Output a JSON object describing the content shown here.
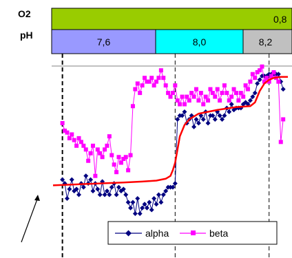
{
  "header": {
    "row1_label": "O2",
    "row2_label": "pH",
    "o2_value": "0,8",
    "o2_color": "#99cc00",
    "ph_segments": [
      {
        "label": "7,6",
        "color": "#9999ff"
      },
      {
        "label": "8,0",
        "color": "#00ffff"
      },
      {
        "label": "8,2",
        "color": "#c0c0c0"
      }
    ]
  },
  "chart_data": {
    "type": "line",
    "x_range": [
      0,
      100
    ],
    "y_range": [
      0,
      100
    ],
    "grid": false,
    "legend_position": "bottom-right",
    "phase_boundaries": [
      4,
      52,
      92
    ],
    "series": [
      {
        "name": "alpha",
        "color": "#000080",
        "marker": "diamond",
        "points": [
          [
            4,
            39
          ],
          [
            5,
            37
          ],
          [
            6,
            29
          ],
          [
            7,
            34
          ],
          [
            8,
            39
          ],
          [
            9,
            33
          ],
          [
            10,
            34
          ],
          [
            11,
            31
          ],
          [
            12,
            37
          ],
          [
            13,
            35
          ],
          [
            14,
            41
          ],
          [
            15,
            37
          ],
          [
            16,
            39
          ],
          [
            17,
            33
          ],
          [
            18,
            37
          ],
          [
            19,
            34
          ],
          [
            20,
            31
          ],
          [
            21,
            38
          ],
          [
            22,
            31
          ],
          [
            23,
            33
          ],
          [
            24,
            31
          ],
          [
            25,
            35
          ],
          [
            26,
            37
          ],
          [
            27,
            31
          ],
          [
            28,
            35
          ],
          [
            29,
            33
          ],
          [
            30,
            34
          ],
          [
            31,
            31
          ],
          [
            32,
            27
          ],
          [
            33,
            24
          ],
          [
            34,
            27
          ],
          [
            35,
            21
          ],
          [
            36,
            29
          ],
          [
            37,
            21
          ],
          [
            38,
            24
          ],
          [
            39,
            26
          ],
          [
            40,
            24
          ],
          [
            41,
            27
          ],
          [
            42,
            23
          ],
          [
            43,
            29
          ],
          [
            44,
            26
          ],
          [
            45,
            31
          ],
          [
            46,
            27
          ],
          [
            47,
            31
          ],
          [
            48,
            33
          ],
          [
            49,
            35
          ],
          [
            50,
            35
          ],
          [
            51,
            35
          ],
          [
            52,
            37
          ],
          [
            53,
            71
          ],
          [
            54,
            73
          ],
          [
            55,
            73
          ],
          [
            56,
            75
          ],
          [
            57,
            69
          ],
          [
            58,
            71
          ],
          [
            59,
            73
          ],
          [
            60,
            67
          ],
          [
            61,
            71
          ],
          [
            62,
            69
          ],
          [
            63,
            73
          ],
          [
            64,
            71
          ],
          [
            65,
            75
          ],
          [
            66,
            69
          ],
          [
            67,
            73
          ],
          [
            68,
            73
          ],
          [
            69,
            71
          ],
          [
            70,
            75
          ],
          [
            71,
            73
          ],
          [
            72,
            71
          ],
          [
            73,
            73
          ],
          [
            74,
            77
          ],
          [
            75,
            75
          ],
          [
            76,
            79
          ],
          [
            77,
            76
          ],
          [
            78,
            77
          ],
          [
            79,
            77
          ],
          [
            80,
            77
          ],
          [
            81,
            79
          ],
          [
            82,
            80
          ],
          [
            83,
            79
          ],
          [
            84,
            81
          ],
          [
            85,
            83
          ],
          [
            86,
            85
          ],
          [
            87,
            90
          ],
          [
            88,
            92
          ],
          [
            89,
            94
          ],
          [
            90,
            94
          ],
          [
            91,
            94
          ],
          [
            92,
            95
          ],
          [
            93,
            95
          ],
          [
            94,
            95
          ],
          [
            95,
            95
          ],
          [
            96,
            95
          ],
          [
            97,
            91
          ],
          [
            98,
            87
          ]
        ]
      },
      {
        "name": "beta",
        "color": "#ff00ff",
        "marker": "square",
        "points": [
          [
            4,
            69
          ],
          [
            5,
            65
          ],
          [
            6,
            64
          ],
          [
            7,
            61
          ],
          [
            8,
            63
          ],
          [
            9,
            60
          ],
          [
            10,
            57
          ],
          [
            11,
            61
          ],
          [
            12,
            59
          ],
          [
            13,
            57
          ],
          [
            14,
            55
          ],
          [
            15,
            49
          ],
          [
            16,
            53
          ],
          [
            17,
            57
          ],
          [
            18,
            41
          ],
          [
            19,
            55
          ],
          [
            20,
            53
          ],
          [
            21,
            51
          ],
          [
            22,
            55
          ],
          [
            23,
            57
          ],
          [
            24,
            62
          ],
          [
            25,
            52
          ],
          [
            26,
            47
          ],
          [
            27,
            43
          ],
          [
            28,
            51
          ],
          [
            29,
            48
          ],
          [
            30,
            50
          ],
          [
            31,
            51
          ],
          [
            32,
            44
          ],
          [
            33,
            52
          ],
          [
            34,
            78
          ],
          [
            35,
            87
          ],
          [
            36,
            90
          ],
          [
            37,
            85
          ],
          [
            38,
            89
          ],
          [
            39,
            93
          ],
          [
            40,
            91
          ],
          [
            41,
            91
          ],
          [
            42,
            93
          ],
          [
            43,
            89
          ],
          [
            44,
            91
          ],
          [
            45,
            93
          ],
          [
            46,
            97
          ],
          [
            47,
            93
          ],
          [
            48,
            89
          ],
          [
            49,
            85
          ],
          [
            50,
            83
          ],
          [
            51,
            85
          ],
          [
            52,
            89
          ],
          [
            53,
            81
          ],
          [
            54,
            79
          ],
          [
            55,
            83
          ],
          [
            56,
            79
          ],
          [
            57,
            83
          ],
          [
            58,
            81
          ],
          [
            59,
            85
          ],
          [
            60,
            83
          ],
          [
            61,
            87
          ],
          [
            62,
            81
          ],
          [
            63,
            85
          ],
          [
            64,
            79
          ],
          [
            65,
            83
          ],
          [
            66,
            81
          ],
          [
            67,
            87
          ],
          [
            68,
            85
          ],
          [
            69,
            83
          ],
          [
            70,
            87
          ],
          [
            71,
            81
          ],
          [
            72,
            85
          ],
          [
            73,
            89
          ],
          [
            74,
            85
          ],
          [
            75,
            81
          ],
          [
            76,
            83
          ],
          [
            77,
            87
          ],
          [
            78,
            85
          ],
          [
            79,
            81
          ],
          [
            80,
            85
          ],
          [
            81,
            83
          ],
          [
            82,
            89
          ],
          [
            83,
            87
          ],
          [
            84,
            91
          ],
          [
            85,
            95
          ],
          [
            86,
            93
          ],
          [
            87,
            96
          ],
          [
            88,
            97
          ],
          [
            89,
            99
          ],
          [
            90,
            91
          ],
          [
            91,
            93
          ],
          [
            92,
            91
          ],
          [
            93,
            94
          ],
          [
            94,
            96
          ],
          [
            95,
            93
          ],
          [
            96,
            91
          ],
          [
            97,
            59
          ],
          [
            98,
            71
          ]
        ]
      },
      {
        "name": "",
        "color": "#ff0000",
        "marker": "none",
        "points": [
          [
            0,
            36
          ],
          [
            10,
            36.5
          ],
          [
            20,
            37
          ],
          [
            30,
            37.5
          ],
          [
            38,
            38
          ],
          [
            44,
            38.5
          ],
          [
            48,
            39.5
          ],
          [
            50,
            41
          ],
          [
            51,
            44
          ],
          [
            52,
            48
          ],
          [
            53,
            55
          ],
          [
            54,
            62
          ],
          [
            56,
            68
          ],
          [
            58,
            71
          ],
          [
            62,
            74
          ],
          [
            70,
            76
          ],
          [
            78,
            77.5
          ],
          [
            84,
            78
          ],
          [
            86,
            80
          ],
          [
            88,
            86
          ],
          [
            90,
            90
          ],
          [
            92,
            92
          ],
          [
            94,
            93
          ],
          [
            97,
            93.5
          ],
          [
            100,
            93.5
          ]
        ]
      }
    ],
    "legend": [
      "alpha",
      "beta"
    ]
  }
}
